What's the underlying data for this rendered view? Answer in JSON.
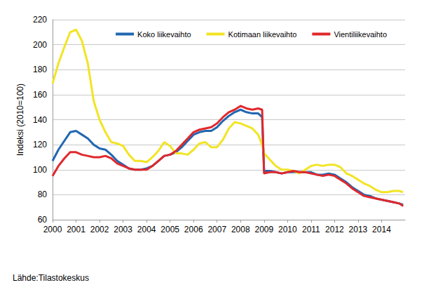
{
  "chart_data": {
    "type": "line",
    "y_label": "Indeksi (2010=100)",
    "annotations": [
      "Lähde:Tilastokeskus"
    ],
    "x": [
      2000,
      2000.25,
      2000.5,
      2000.75,
      2001,
      2001.25,
      2001.5,
      2001.75,
      2002,
      2002.25,
      2002.5,
      2002.75,
      2003,
      2003.25,
      2003.5,
      2003.75,
      2004,
      2004.25,
      2004.5,
      2004.75,
      2005,
      2005.25,
      2005.5,
      2005.75,
      2006,
      2006.25,
      2006.5,
      2006.75,
      2007,
      2007.25,
      2007.5,
      2007.75,
      2008,
      2008.25,
      2008.5,
      2008.75,
      2008.917,
      2009,
      2009.25,
      2009.5,
      2009.75,
      2010,
      2010.25,
      2010.5,
      2010.75,
      2011,
      2011.25,
      2011.5,
      2011.75,
      2012,
      2012.25,
      2012.5,
      2012.75,
      2013,
      2013.25,
      2013.5,
      2013.75,
      2014,
      2014.25,
      2014.5,
      2014.75,
      2014.917
    ],
    "series": [
      {
        "name": "Koko liikevaihto",
        "color": "#2167b1",
        "values": [
          107,
          116,
          123,
          130,
          131,
          128,
          125,
          120,
          117,
          116,
          112,
          107,
          104,
          101,
          100,
          100,
          101,
          103,
          107,
          111,
          112,
          114,
          118,
          123,
          128,
          130,
          131,
          131,
          134,
          139,
          143,
          146,
          148,
          146,
          145,
          145,
          142,
          99,
          99,
          98,
          97,
          98,
          98,
          98,
          98,
          98,
          96,
          96,
          97,
          96,
          93,
          90,
          86,
          83,
          80,
          79,
          77,
          76,
          75,
          74,
          73,
          72
        ]
      },
      {
        "name": "Kotimaan liikevaihto",
        "color": "#f2e424",
        "values": [
          169,
          185,
          198,
          210,
          212,
          203,
          185,
          155,
          140,
          130,
          122,
          121,
          119,
          112,
          107,
          107,
          106,
          110,
          115,
          122,
          119,
          113,
          113,
          112,
          116,
          121,
          122,
          118,
          118,
          124,
          133,
          138,
          137,
          135,
          133,
          128,
          120,
          113,
          108,
          103,
          100,
          100,
          99,
          97,
          100,
          103,
          104,
          103,
          104,
          104,
          102,
          97,
          95,
          92,
          89,
          87,
          84,
          82,
          82,
          83,
          83,
          82
        ]
      },
      {
        "name": "Vientiliikevaihto",
        "color": "#e0282c",
        "values": [
          95,
          103,
          109,
          114,
          114,
          112,
          111,
          110,
          110,
          111,
          109,
          105,
          103,
          101,
          100,
          100,
          100,
          103,
          107,
          111,
          112,
          115,
          120,
          125,
          130,
          132,
          133,
          134,
          137,
          142,
          146,
          148,
          151,
          149,
          148,
          149,
          148,
          97,
          98,
          98,
          97,
          98,
          99,
          98,
          98,
          97,
          96,
          95,
          96,
          95,
          92,
          89,
          85,
          82,
          79,
          78,
          77,
          76,
          75,
          74,
          73,
          71
        ]
      }
    ],
    "xlim": [
      2000,
      2015
    ],
    "xticks": [
      2000,
      2001,
      2002,
      2003,
      2004,
      2005,
      2006,
      2007,
      2008,
      2009,
      2010,
      2011,
      2012,
      2013,
      2014
    ],
    "ylim": [
      60,
      220
    ],
    "yticks": [
      60,
      80,
      100,
      120,
      140,
      160,
      180,
      200,
      220
    ],
    "grid": true,
    "legend": "top"
  }
}
